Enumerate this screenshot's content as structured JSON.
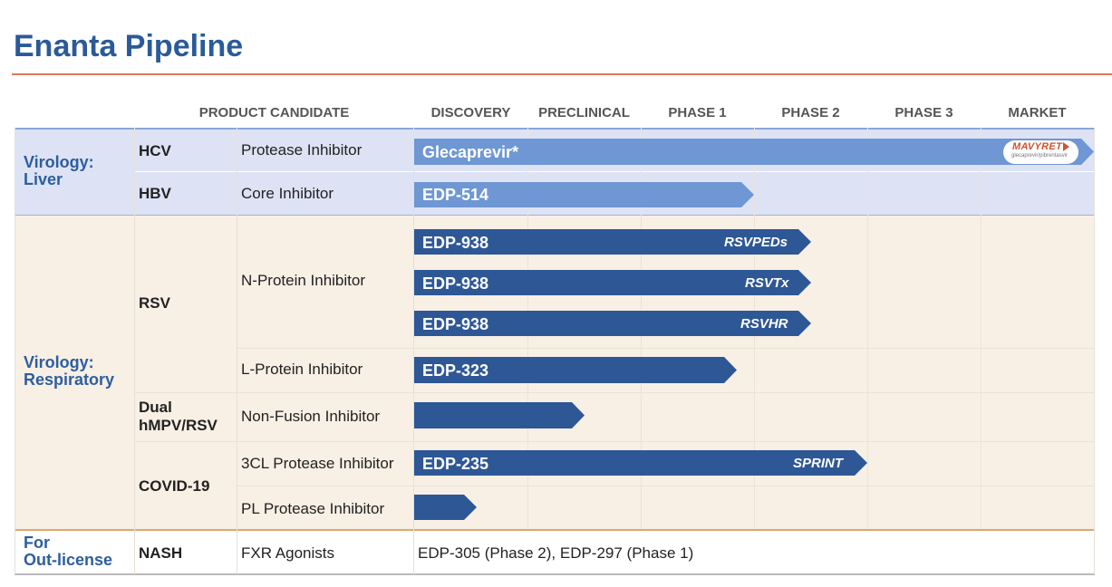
{
  "title": "Enanta Pipeline",
  "headers": {
    "product_candidate": "PRODUCT CANDIDATE",
    "stages": [
      "DISCOVERY",
      "PRECLINICAL",
      "PHASE 1",
      "PHASE 2",
      "PHASE 3",
      "MARKET"
    ]
  },
  "areas": [
    {
      "label": "Virology:\nLiver",
      "color": "#2d5e9e"
    },
    {
      "label": "Virology:\nRespiratory",
      "color": "#2d5e9e"
    },
    {
      "label": "For\nOut-license",
      "color": "#2d5e9e"
    }
  ],
  "diseases": [
    "HCV",
    "HBV",
    "RSV",
    "Dual\nhMPV/RSV",
    "COVID-19",
    "NASH"
  ],
  "candidates": [
    "Protease Inhibitor",
    "Core Inhibitor",
    "N-Protein Inhibitor",
    "L-Protein Inhibitor",
    "Non-Fusion Inhibitor",
    "3CL Protease Inhibitor",
    "PL Protease Inhibitor",
    "FXR Agonists"
  ],
  "colors": {
    "liver_band": "#dde3f5",
    "respiratory_band": "#f8efe5",
    "liver_bar": "#6e97d3",
    "respiratory_bar": "#2e5796",
    "title": "#2a5a9a",
    "rule": "#e0785a"
  },
  "badge": {
    "name": "MAVYRET",
    "sub": "glecaprevir/pibrentasvir"
  },
  "out_license_note": "EDP-305 (Phase 2), EDP-297 (Phase 1)",
  "chart_data": {
    "type": "bar",
    "orientation": "horizontal",
    "categories": [
      "DISCOVERY",
      "PRECLINICAL",
      "PHASE 1",
      "PHASE 2",
      "PHASE 3",
      "MARKET"
    ],
    "value_unit": "development stage reached (0 = start of DISCOVERY, 6 = end of MARKET)",
    "xlim": [
      0,
      6
    ],
    "grid": true,
    "bars": [
      {
        "label": "Glecaprevir*",
        "tag": "",
        "value": 6.0,
        "color": "#6e97d3",
        "indication": "HCV",
        "mechanism": "Protease Inhibitor"
      },
      {
        "label": "EDP-514",
        "tag": "",
        "value": 3.0,
        "color": "#6e97d3",
        "indication": "HBV",
        "mechanism": "Core Inhibitor"
      },
      {
        "label": "EDP-938",
        "tag": "RSVPEDs",
        "value": 3.5,
        "color": "#2e5796",
        "indication": "RSV",
        "mechanism": "N-Protein Inhibitor"
      },
      {
        "label": "EDP-938",
        "tag": "RSVTx",
        "value": 3.5,
        "color": "#2e5796",
        "indication": "RSV",
        "mechanism": "N-Protein Inhibitor"
      },
      {
        "label": "EDP-938",
        "tag": "RSVHR",
        "value": 3.5,
        "color": "#2e5796",
        "indication": "RSV",
        "mechanism": "N-Protein Inhibitor"
      },
      {
        "label": "EDP-323",
        "tag": "",
        "value": 2.85,
        "color": "#2e5796",
        "indication": "RSV",
        "mechanism": "L-Protein Inhibitor"
      },
      {
        "label": "",
        "tag": "",
        "value": 1.5,
        "color": "#2e5796",
        "indication": "Dual hMPV/RSV",
        "mechanism": "Non-Fusion Inhibitor"
      },
      {
        "label": "EDP-235",
        "tag": "SPRINT",
        "value": 4.0,
        "color": "#2e5796",
        "indication": "COVID-19",
        "mechanism": "3CL Protease Inhibitor"
      },
      {
        "label": "",
        "tag": "",
        "value": 0.55,
        "color": "#2e5796",
        "indication": "COVID-19",
        "mechanism": "PL Protease Inhibitor"
      }
    ]
  }
}
